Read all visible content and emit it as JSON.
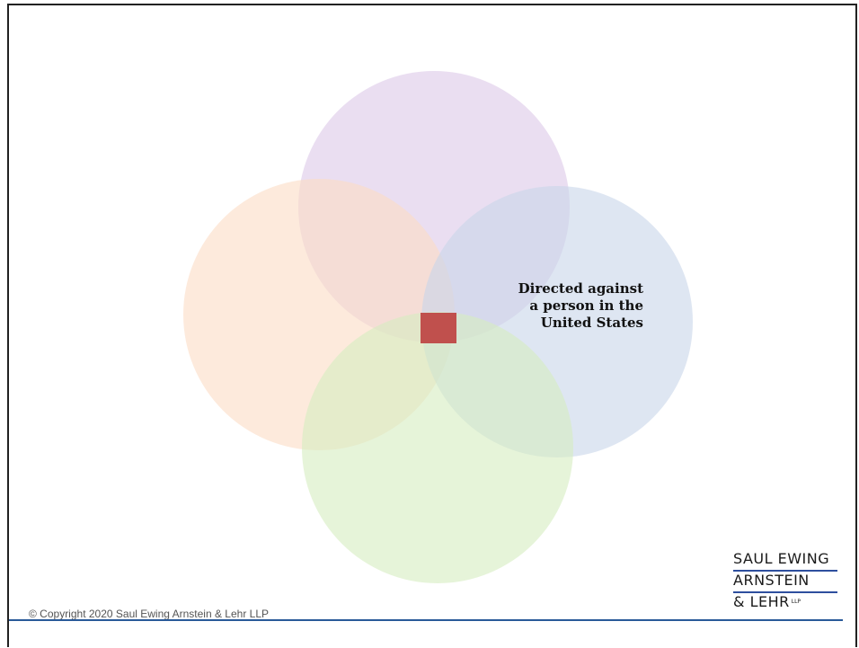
{
  "diagram": {
    "circles": [
      {
        "name": "top",
        "color": "#dcc8e8"
      },
      {
        "name": "left",
        "color": "#fbdcc4"
      },
      {
        "name": "right",
        "color": "#c8d6ea"
      },
      {
        "name": "bottom",
        "color": "#d6ecc0"
      }
    ],
    "center_highlight_color": "#c0504d",
    "label_lines": [
      "Directed against",
      "a person in the",
      "United States"
    ]
  },
  "footer": {
    "copyright": "© Copyright 2020 Saul Ewing Arnstein & Lehr LLP",
    "rule_color": "#2a5a99",
    "logo": {
      "line1": "SAUL EWING",
      "line2": "ARNSTEIN",
      "line3": "& LEHR",
      "suffix": "LLP"
    }
  }
}
